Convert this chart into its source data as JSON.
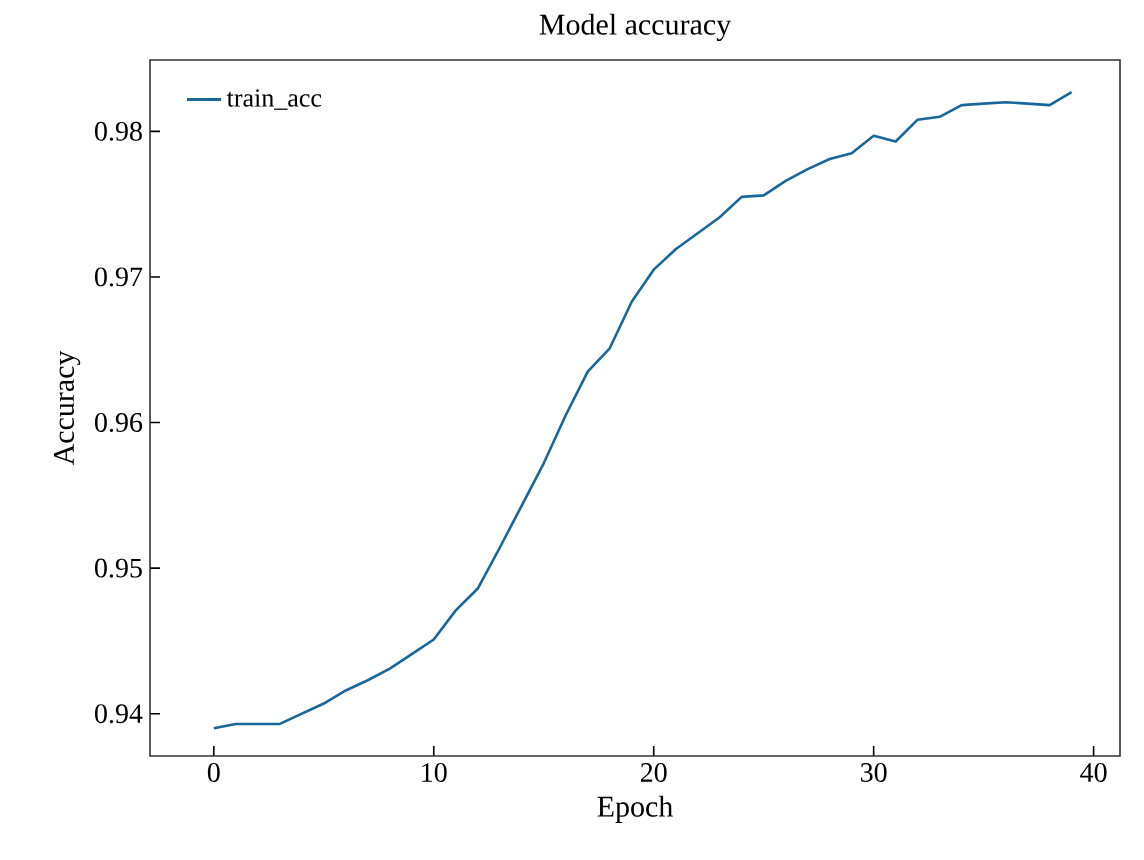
{
  "chart_data": {
    "type": "line",
    "title": "Model accuracy",
    "xlabel": "Epoch",
    "ylabel": "Accuracy",
    "x": [
      0,
      1,
      2,
      3,
      4,
      5,
      6,
      7,
      8,
      9,
      10,
      11,
      12,
      13,
      14,
      15,
      16,
      17,
      18,
      19,
      20,
      21,
      22,
      23,
      24,
      25,
      26,
      27,
      28,
      29,
      30,
      31,
      32,
      33,
      34,
      35,
      36,
      37,
      38,
      39
    ],
    "series": [
      {
        "name": "train_acc",
        "color": "#17679b",
        "values": [
          0.939,
          0.9393,
          0.9393,
          0.9393,
          0.94,
          0.9407,
          0.9416,
          0.9423,
          0.9431,
          0.9441,
          0.9451,
          0.9471,
          0.9486,
          0.9514,
          0.9543,
          0.9572,
          0.9605,
          0.9635,
          0.9651,
          0.9683,
          0.9705,
          0.9719,
          0.973,
          0.9741,
          0.9755,
          0.9756,
          0.9766,
          0.9774,
          0.9781,
          0.9785,
          0.9797,
          0.9793,
          0.9808,
          0.981,
          0.9818,
          0.9819,
          0.982,
          0.9819,
          0.9818,
          0.9827
        ]
      }
    ],
    "xlim": [
      -2.9,
      41.2
    ],
    "ylim": [
      0.9371,
      0.9849
    ],
    "xticks": [
      0,
      10,
      20,
      30,
      40
    ],
    "yticks": [
      {
        "value": 0.94,
        "label": "0.94"
      },
      {
        "value": 0.95,
        "label": "0.95"
      },
      {
        "value": 0.96,
        "label": "0.96"
      },
      {
        "value": 0.97,
        "label": "0.97"
      },
      {
        "value": 0.98,
        "label": "0.98"
      }
    ],
    "legend": "top left",
    "grid": false,
    "marker": "none",
    "line_style": "solid"
  }
}
